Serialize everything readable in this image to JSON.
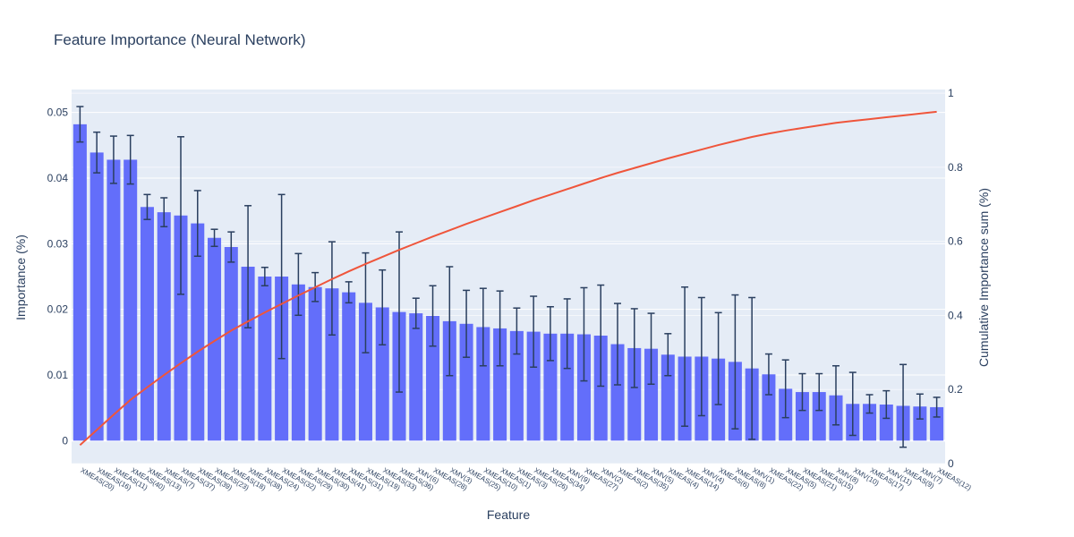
{
  "chart_data": {
    "type": "bar",
    "title": "Feature Importance (Neural Network)",
    "xlabel": "Feature",
    "ylabel": "Importance (%)",
    "y2label": "Cumulative Importance sum (%)",
    "ylim": [
      -0.0035,
      0.0535
    ],
    "y2lim": [
      0,
      1.01
    ],
    "yticks": [
      0,
      0.01,
      0.02,
      0.03,
      0.04,
      0.05
    ],
    "ytick_labels": [
      "0",
      "0.01",
      "0.02",
      "0.03",
      "0.04",
      "0.05"
    ],
    "y2ticks": [
      0,
      0.2,
      0.4,
      0.6,
      0.8,
      1
    ],
    "y2tick_labels": [
      "0",
      "0.2",
      "0.4",
      "0.6",
      "0.8",
      "1"
    ],
    "grid": true,
    "bar_color": "#636efa",
    "line_color": "#ef553b",
    "error_bar_color": "#2a3f5f",
    "plot_background": "#e5ecf6",
    "categories": [
      "XMEAS(20)",
      "XMEAS(16)",
      "XMEAS(11)",
      "XMEAS(40)",
      "XMEAS(13)",
      "XMEAS(7)",
      "XMEAS(37)",
      "XMEAS(39)",
      "XMEAS(23)",
      "XMEAS(18)",
      "XMEAS(38)",
      "XMEAS(24)",
      "XMEAS(32)",
      "XMEAS(29)",
      "XMEAS(30)",
      "XMEAS(41)",
      "XMEAS(31)",
      "XMEAS(19)",
      "XMEAS(33)",
      "XMEAS(36)",
      "XMV(6)",
      "XMEAS(28)",
      "XMV(3)",
      "XMEAS(25)",
      "XMEAS(10)",
      "XMEAS(1)",
      "XMEAS(3)",
      "XMEAS(26)",
      "XMEAS(34)",
      "XMV(9)",
      "XMEAS(27)",
      "XMV(2)",
      "XMEAS(2)",
      "XMEAS(35)",
      "XMV(5)",
      "XMEAS(4)",
      "XMEAS(14)",
      "XMV(4)",
      "XMEAS(6)",
      "XMEAS(8)",
      "XMV(1)",
      "XMEAS(22)",
      "XMEAS(5)",
      "XMEAS(21)",
      "XMEAS(15)",
      "XMV(8)",
      "XMV(10)",
      "XMEAS(17)",
      "XMV(11)",
      "XMEAS(9)",
      "XMV(7)",
      "XMEAS(12)"
    ],
    "values": [
      0.0482,
      0.0439,
      0.0428,
      0.0428,
      0.0356,
      0.0348,
      0.0343,
      0.0331,
      0.0309,
      0.0295,
      0.0265,
      0.025,
      0.025,
      0.0238,
      0.0234,
      0.0232,
      0.0226,
      0.021,
      0.0203,
      0.0196,
      0.0194,
      0.019,
      0.0182,
      0.0178,
      0.0173,
      0.0171,
      0.0167,
      0.0166,
      0.0163,
      0.0163,
      0.0162,
      0.016,
      0.0147,
      0.0141,
      0.014,
      0.0131,
      0.0128,
      0.0128,
      0.0125,
      0.012,
      0.011,
      0.0101,
      0.0079,
      0.0074,
      0.0074,
      0.0069,
      0.0056,
      0.0056,
      0.0055,
      0.0053,
      0.0052,
      0.0051
    ],
    "error": [
      0.0027,
      0.0031,
      0.0036,
      0.0037,
      0.0019,
      0.0022,
      0.012,
      0.005,
      0.0013,
      0.0023,
      0.0093,
      0.0014,
      0.0125,
      0.0047,
      0.0022,
      0.0071,
      0.0016,
      0.0076,
      0.0057,
      0.0122,
      0.0023,
      0.0046,
      0.0083,
      0.0051,
      0.0059,
      0.0057,
      0.0035,
      0.0054,
      0.0041,
      0.0053,
      0.0071,
      0.0077,
      0.0062,
      0.006,
      0.0054,
      0.0032,
      0.0106,
      0.009,
      0.007,
      0.0102,
      0.0108,
      0.0031,
      0.0044,
      0.0028,
      0.0028,
      0.0045,
      0.0048,
      0.0014,
      0.0021,
      0.0063,
      0.0019,
      0.0015
    ],
    "cumulative": [
      0.05,
      0.091,
      0.132,
      0.172,
      0.206,
      0.239,
      0.271,
      0.302,
      0.331,
      0.359,
      0.384,
      0.408,
      0.431,
      0.454,
      0.476,
      0.498,
      0.519,
      0.539,
      0.558,
      0.577,
      0.595,
      0.613,
      0.63,
      0.647,
      0.663,
      0.679,
      0.695,
      0.711,
      0.726,
      0.741,
      0.756,
      0.771,
      0.785,
      0.798,
      0.811,
      0.824,
      0.836,
      0.848,
      0.86,
      0.871,
      0.882,
      0.891,
      0.899,
      0.906,
      0.913,
      0.92,
      0.925,
      0.93,
      0.935,
      0.94,
      0.945,
      0.95
    ]
  }
}
